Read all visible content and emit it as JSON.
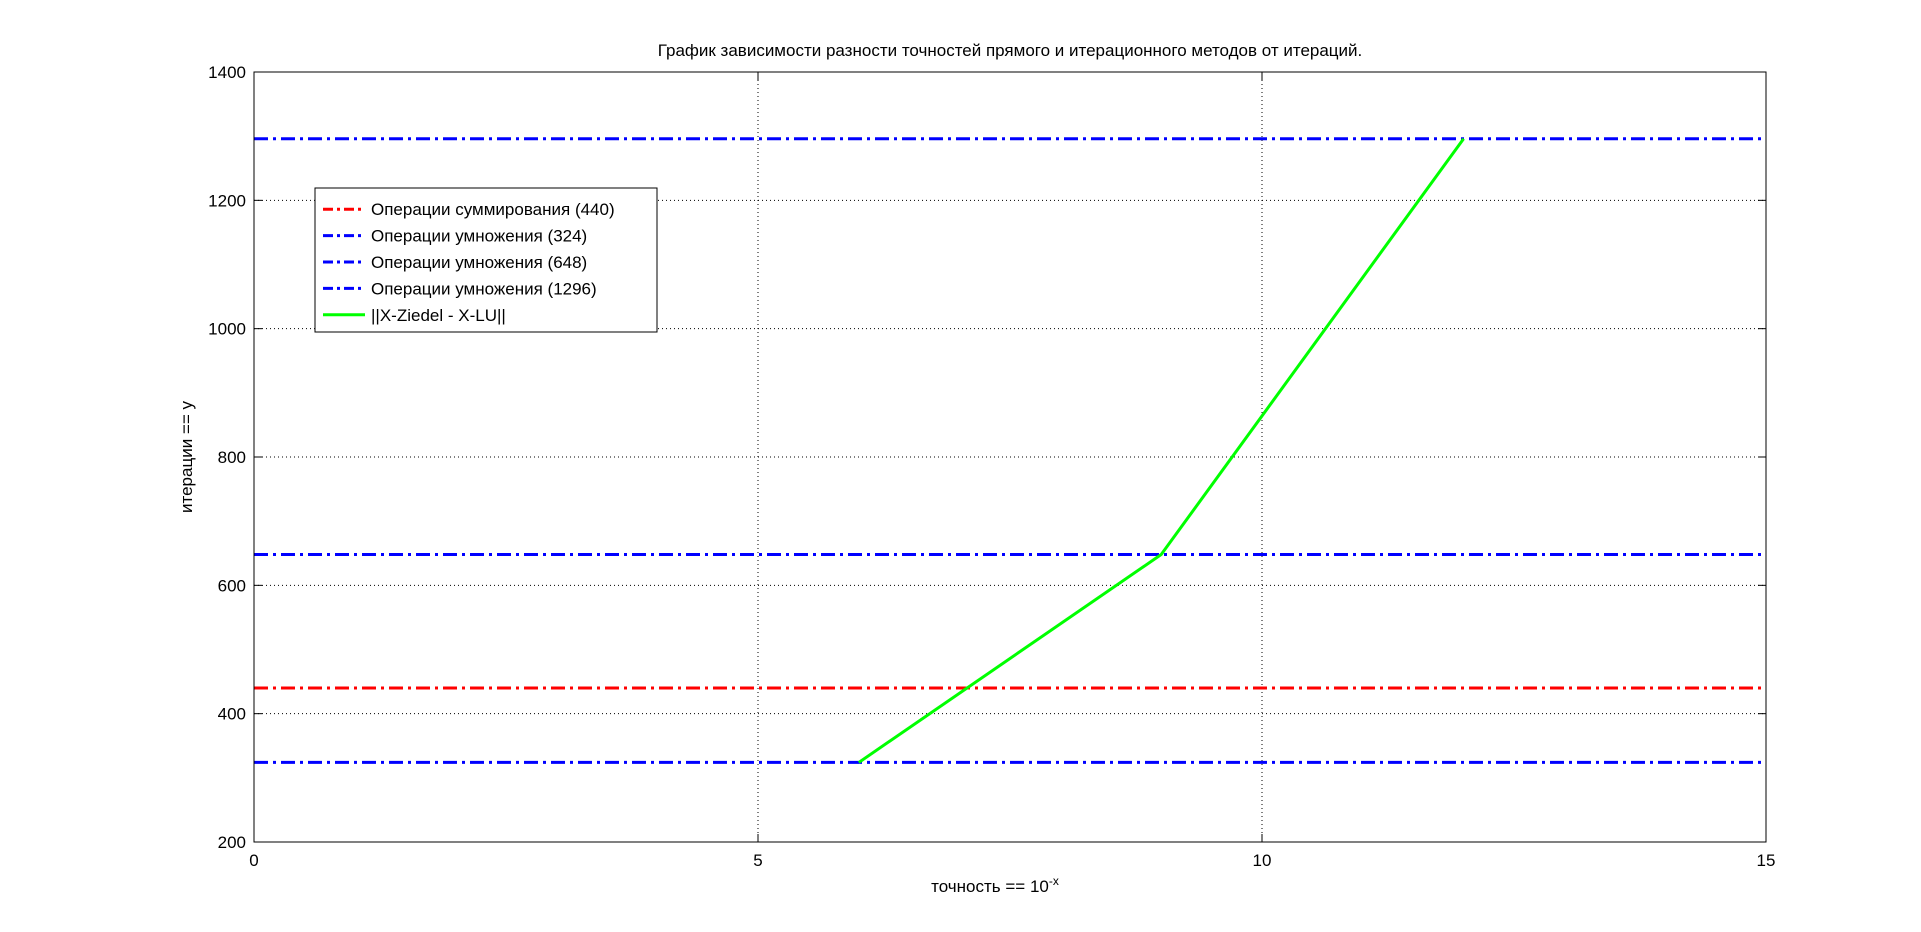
{
  "chart_data": {
    "type": "line",
    "title": "График зависимости разности точностей прямого и итерационного методов от итераций.",
    "xlabel_main": "точность == 10",
    "xlabel_sup": "-x",
    "ylabel": "итерации == y",
    "xlim": [
      0,
      15
    ],
    "ylim": [
      200,
      1400
    ],
    "xticks": [
      0,
      5,
      10,
      15
    ],
    "yticks": [
      200,
      400,
      600,
      800,
      1000,
      1200,
      1400
    ],
    "grid": true,
    "legend_position": "top-left",
    "series": [
      {
        "name": "Операции суммирования (440)",
        "style": "dash-dot",
        "color": "#ff0000",
        "x": [
          0,
          15
        ],
        "y": [
          440,
          440
        ]
      },
      {
        "name": "Операции умножения (324)",
        "style": "dash-dot",
        "color": "#0000ff",
        "x": [
          0,
          15
        ],
        "y": [
          324,
          324
        ]
      },
      {
        "name": "Операции умножения (648)",
        "style": "dash-dot",
        "color": "#0000ff",
        "x": [
          0,
          15
        ],
        "y": [
          648,
          648
        ]
      },
      {
        "name": "Операции умножения (1296)",
        "style": "dash-dot",
        "color": "#0000ff",
        "x": [
          0,
          15
        ],
        "y": [
          1296,
          1296
        ]
      },
      {
        "name": "||X-Ziedel - X-LU||",
        "style": "solid",
        "color": "#00ff00",
        "x": [
          6,
          9,
          12
        ],
        "y": [
          324,
          648,
          1296
        ]
      }
    ]
  }
}
